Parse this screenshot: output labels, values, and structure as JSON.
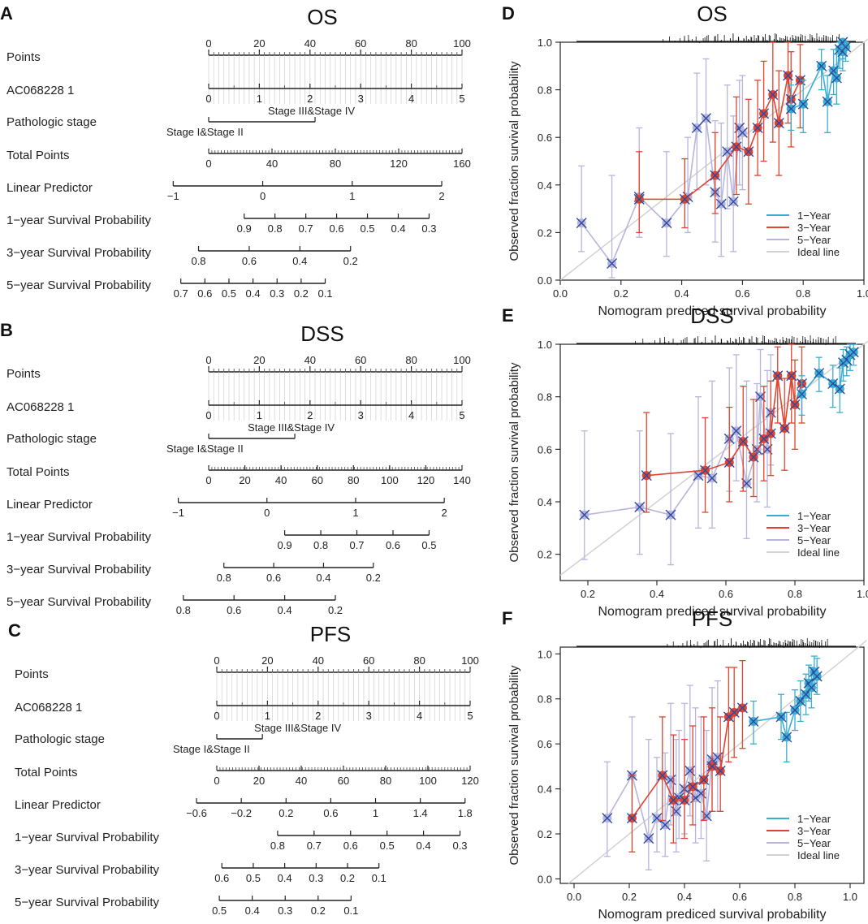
{
  "figure": {
    "nomograms": [
      {
        "letter": "A",
        "title": "OS",
        "points": {
          "label": "Points",
          "ticks": [
            "0",
            "20",
            "40",
            "60",
            "80",
            "100"
          ]
        },
        "gene": {
          "label": "AC068228 1",
          "ticks": [
            "0",
            "1",
            "2",
            "3",
            "4",
            "5"
          ]
        },
        "stage": {
          "label": "Pathologic stage",
          "upper": "Stage III&Stage IV",
          "lower": "Stage I&Stage II"
        },
        "total": {
          "label": "Total Points",
          "ticks": [
            "0",
            "40",
            "80",
            "120",
            "160"
          ]
        },
        "linear": {
          "label": "Linear Predictor",
          "ticks": [
            "−1",
            "0",
            "1",
            "2"
          ]
        },
        "surv1": {
          "label": "1−year Survival Probability",
          "ticks": [
            "0.9",
            "0.8",
            "0.7",
            "0.6",
            "0.5",
            "0.4",
            "0.3"
          ]
        },
        "surv3": {
          "label": "3−year Survival Probability",
          "ticks": [
            "0.8",
            "0.6",
            "0.4",
            "0.2"
          ]
        },
        "surv5": {
          "label": "5−year Survival Probability",
          "ticks": [
            "0.7",
            "0.6",
            "0.5",
            "0.4",
            "0.3",
            "0.2",
            "0.1"
          ]
        }
      },
      {
        "letter": "B",
        "title": "DSS",
        "points": {
          "label": "Points",
          "ticks": [
            "0",
            "20",
            "40",
            "60",
            "80",
            "100"
          ]
        },
        "gene": {
          "label": "AC068228 1",
          "ticks": [
            "0",
            "1",
            "2",
            "3",
            "4",
            "5"
          ]
        },
        "stage": {
          "label": "Pathologic stage",
          "upper": "Stage III&Stage IV",
          "lower": "Stage I&Stage II"
        },
        "total": {
          "label": "Total Points",
          "ticks": [
            "0",
            "20",
            "40",
            "60",
            "80",
            "100",
            "120",
            "140"
          ]
        },
        "linear": {
          "label": "Linear Predictor",
          "ticks": [
            "−1",
            "0",
            "1",
            "2"
          ]
        },
        "surv1": {
          "label": "1−year Survival Probability",
          "ticks": [
            "0.9",
            "0.8",
            "0.7",
            "0.6",
            "0.5"
          ]
        },
        "surv3": {
          "label": "3−year Survival Probability",
          "ticks": [
            "0.8",
            "0.6",
            "0.4",
            "0.2"
          ]
        },
        "surv5": {
          "label": "5−year Survival Probability",
          "ticks": [
            "0.8",
            "0.6",
            "0.4",
            "0.2"
          ]
        }
      },
      {
        "letter": "C",
        "title": "PFS",
        "points": {
          "label": "Points",
          "ticks": [
            "0",
            "20",
            "40",
            "60",
            "80",
            "100"
          ]
        },
        "gene": {
          "label": "AC068228 1",
          "ticks": [
            "0",
            "1",
            "2",
            "3",
            "4",
            "5"
          ]
        },
        "stage": {
          "label": "Pathologic stage",
          "upper": "Stage III&Stage IV",
          "lower": "Stage I&Stage II"
        },
        "total": {
          "label": "Total Points",
          "ticks": [
            "0",
            "20",
            "40",
            "60",
            "80",
            "100",
            "120"
          ]
        },
        "linear": {
          "label": "Linear Predictor",
          "ticks": [
            "−0.6",
            "−0.2",
            "0.2",
            "0.6",
            "1",
            "1.4",
            "1.8"
          ]
        },
        "surv1": {
          "label": "1−year Survival Probability",
          "ticks": [
            "0.8",
            "0.7",
            "0.6",
            "0.5",
            "0.4",
            "0.3"
          ]
        },
        "surv3": {
          "label": "3−year Survival Probability",
          "ticks": [
            "0.6",
            "0.5",
            "0.4",
            "0.3",
            "0.2",
            "0.1"
          ]
        },
        "surv5": {
          "label": "5−year Survival Probability",
          "ticks": [
            "0.5",
            "0.4",
            "0.3",
            "0.2",
            "0.1"
          ]
        }
      }
    ],
    "calibration_common": {
      "xlabel": "Nomogram prediced survival probability",
      "ylabel": "Observed fraction survival probability",
      "legend": [
        "1−Year",
        "3−Year",
        "5−Year",
        "Ideal line"
      ],
      "colors": {
        "y1": "#3aaed1",
        "y3": "#e0432f",
        "y5": "#b7b5dc",
        "ideal": "#d2d2d2",
        "cross": "#2b4aa0"
      }
    }
  },
  "chart_data": [
    {
      "type": "line",
      "panel": "D",
      "title": "OS",
      "xlim": [
        0,
        1
      ],
      "ylim": [
        0,
        1
      ],
      "xticks": [
        "0.0",
        "0.2",
        "0.4",
        "0.6",
        "0.8",
        "1.0"
      ],
      "yticks": [
        "0.0",
        "0.2",
        "0.4",
        "0.6",
        "0.8",
        "1.0"
      ],
      "series": [
        {
          "name": "5−Year",
          "x": [
            0.07,
            0.17,
            0.26,
            0.35,
            0.42,
            0.45,
            0.48,
            0.51,
            0.53,
            0.55,
            0.57,
            0.59,
            0.6
          ],
          "y": [
            0.24,
            0.07,
            0.35,
            0.24,
            0.35,
            0.64,
            0.68,
            0.37,
            0.32,
            0.54,
            0.33,
            0.64,
            0.62
          ],
          "lower": [
            0.12,
            0.01,
            0.18,
            0.1,
            0.2,
            0.38,
            0.4,
            0.16,
            0.1,
            0.3,
            0.12,
            0.4,
            0.38
          ],
          "upper": [
            0.48,
            0.44,
            0.64,
            0.54,
            0.6,
            0.87,
            0.93,
            0.67,
            0.66,
            0.82,
            0.69,
            0.84,
            0.86
          ]
        },
        {
          "name": "3−Year",
          "x": [
            0.26,
            0.41,
            0.51,
            0.58,
            0.62,
            0.65,
            0.67,
            0.7,
            0.72,
            0.75,
            0.76,
            0.79
          ],
          "y": [
            0.34,
            0.34,
            0.44,
            0.56,
            0.54,
            0.64,
            0.7,
            0.78,
            0.66,
            0.86,
            0.76,
            0.84
          ],
          "lower": [
            0.2,
            0.22,
            0.28,
            0.36,
            0.32,
            0.44,
            0.5,
            0.58,
            0.44,
            0.66,
            0.56,
            0.64
          ],
          "upper": [
            0.54,
            0.51,
            0.62,
            0.77,
            0.76,
            0.84,
            0.92,
            1.0,
            0.88,
            1.0,
            0.96,
            0.99
          ]
        },
        {
          "name": "1−Year",
          "x": [
            0.76,
            0.8,
            0.86,
            0.88,
            0.9,
            0.91,
            0.92,
            0.93,
            0.93,
            0.94
          ],
          "y": [
            0.72,
            0.74,
            0.9,
            0.75,
            0.88,
            0.85,
            0.97,
            1.0,
            0.96,
            0.98
          ],
          "lower": [
            0.63,
            0.62,
            0.8,
            0.62,
            0.78,
            0.74,
            0.89,
            0.93,
            0.88,
            0.92
          ],
          "upper": [
            0.82,
            0.84,
            0.97,
            0.86,
            0.97,
            0.95,
            1.0,
            1.0,
            1.0,
            1.0
          ]
        }
      ]
    },
    {
      "type": "line",
      "panel": "E",
      "title": "DSS",
      "xlim": [
        0.12,
        1
      ],
      "ylim": [
        0.1,
        1
      ],
      "xticks": [
        "0.2",
        "0.4",
        "0.6",
        "0.8",
        "1.0"
      ],
      "yticks": [
        "0.2",
        "0.4",
        "0.6",
        "0.8",
        "1.0"
      ],
      "series": [
        {
          "name": "5−Year",
          "x": [
            0.19,
            0.35,
            0.44,
            0.52,
            0.56,
            0.61,
            0.63,
            0.66,
            0.69,
            0.7,
            0.72,
            0.73
          ],
          "y": [
            0.35,
            0.38,
            0.35,
            0.5,
            0.49,
            0.64,
            0.67,
            0.47,
            0.6,
            0.8,
            0.6,
            0.74
          ],
          "lower": [
            0.18,
            0.2,
            0.16,
            0.3,
            0.3,
            0.44,
            0.48,
            0.26,
            0.4,
            0.58,
            0.38,
            0.54
          ],
          "upper": [
            0.67,
            0.67,
            0.66,
            0.8,
            0.86,
            0.91,
            0.96,
            0.86,
            0.85,
            0.98,
            0.9,
            0.96
          ],
          "crosses": true
        },
        {
          "name": "3−Year",
          "x": [
            0.37,
            0.54,
            0.61,
            0.65,
            0.68,
            0.71,
            0.73,
            0.75,
            0.77,
            0.79,
            0.8,
            0.82
          ],
          "y": [
            0.5,
            0.52,
            0.55,
            0.63,
            0.57,
            0.64,
            0.66,
            0.88,
            0.68,
            0.88,
            0.77,
            0.85
          ],
          "lower": [
            0.36,
            0.36,
            0.4,
            0.44,
            0.42,
            0.48,
            0.5,
            0.7,
            0.52,
            0.7,
            0.6,
            0.7
          ],
          "upper": [
            0.74,
            0.72,
            0.76,
            0.84,
            0.79,
            0.84,
            0.86,
            0.99,
            0.87,
            1.0,
            0.94,
            0.99
          ]
        },
        {
          "name": "1−Year",
          "x": [
            0.82,
            0.87,
            0.91,
            0.93,
            0.94,
            0.95,
            0.96,
            0.97
          ],
          "y": [
            0.81,
            0.89,
            0.85,
            0.83,
            0.93,
            0.94,
            0.96,
            0.97
          ],
          "lower": [
            0.73,
            0.82,
            0.76,
            0.74,
            0.86,
            0.88,
            0.9,
            0.92
          ],
          "upper": [
            0.88,
            0.95,
            0.92,
            0.91,
            0.98,
            0.99,
            1.0,
            1.0
          ]
        }
      ]
    },
    {
      "type": "line",
      "panel": "F",
      "title": "PFS",
      "xlim": [
        -0.05,
        1.05
      ],
      "ylim": [
        -0.02,
        1.03
      ],
      "xticks": [
        "0.0",
        "0.2",
        "0.4",
        "0.6",
        "0.8",
        "1.0"
      ],
      "yticks": [
        "0.0",
        "0.2",
        "0.4",
        "0.6",
        "0.8",
        "1.0"
      ],
      "series": [
        {
          "name": "5−Year",
          "x": [
            0.12,
            0.21,
            0.27,
            0.3,
            0.33,
            0.35,
            0.37,
            0.38,
            0.4,
            0.42,
            0.44,
            0.46,
            0.48,
            0.5,
            0.52
          ],
          "y": [
            0.27,
            0.46,
            0.18,
            0.27,
            0.24,
            0.44,
            0.3,
            0.36,
            0.4,
            0.48,
            0.36,
            0.38,
            0.28,
            0.53,
            0.54
          ],
          "lower": [
            0.1,
            0.26,
            0.04,
            0.12,
            0.1,
            0.24,
            0.12,
            0.18,
            0.2,
            0.28,
            0.16,
            0.18,
            0.08,
            0.3,
            0.3
          ],
          "upper": [
            0.52,
            0.72,
            0.62,
            0.54,
            0.56,
            0.78,
            0.62,
            0.66,
            0.78,
            0.86,
            0.76,
            0.72,
            0.66,
            0.85,
            0.88
          ],
          "crosses": true
        },
        {
          "name": "3−Year",
          "x": [
            0.21,
            0.32,
            0.36,
            0.4,
            0.43,
            0.47,
            0.5,
            0.53,
            0.56,
            0.58,
            0.61
          ],
          "y": [
            0.27,
            0.46,
            0.35,
            0.35,
            0.41,
            0.44,
            0.5,
            0.48,
            0.72,
            0.74,
            0.76
          ],
          "lower": [
            0.12,
            0.26,
            0.16,
            0.18,
            0.24,
            0.26,
            0.3,
            0.3,
            0.52,
            0.54,
            0.58
          ],
          "upper": [
            0.46,
            0.72,
            0.64,
            0.62,
            0.68,
            0.72,
            0.76,
            0.72,
            0.94,
            0.94,
            0.97
          ]
        },
        {
          "name": "1−Year",
          "x": [
            0.65,
            0.75,
            0.77,
            0.8,
            0.82,
            0.84,
            0.85,
            0.86,
            0.87,
            0.88
          ],
          "y": [
            0.7,
            0.72,
            0.63,
            0.75,
            0.79,
            0.82,
            0.87,
            0.85,
            0.92,
            0.9
          ],
          "lower": [
            0.6,
            0.62,
            0.52,
            0.66,
            0.7,
            0.73,
            0.79,
            0.76,
            0.85,
            0.82
          ],
          "upper": [
            0.79,
            0.82,
            0.74,
            0.84,
            0.88,
            0.91,
            0.95,
            0.94,
            0.99,
            0.98
          ]
        }
      ]
    }
  ]
}
